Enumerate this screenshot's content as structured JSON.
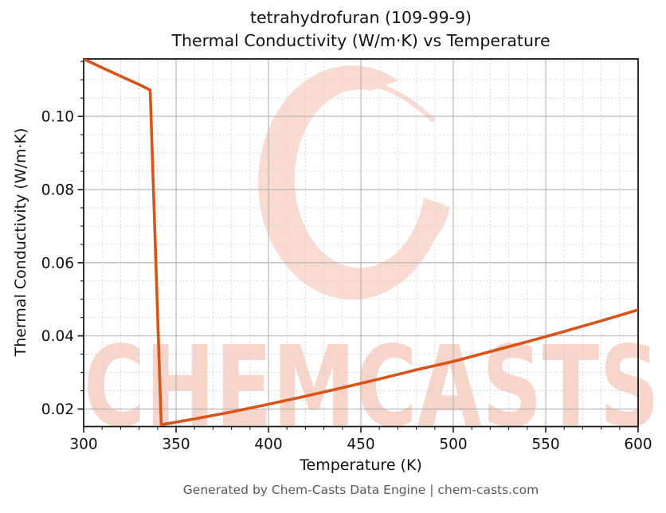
{
  "title": {
    "line1": "tetrahydrofuran (109-99-9)",
    "line2": "Thermal Conductivity (W/m·K) vs Temperature"
  },
  "footer": {
    "text": "Generated by Chem-Casts Data Engine | chem-casts.com"
  },
  "watermark": {
    "text": "CHEMCASTS",
    "logo": "chemcasts-brush-c-swirl"
  },
  "colors": {
    "line": "#d95319",
    "grid_major": "#b2b2b2",
    "grid_minor": "#d2d2d2",
    "spine": "#1a1a1a",
    "tick_text": "#111111",
    "title_text": "#111111",
    "footer_text": "#595959",
    "watermark_pink": "#f8d5ca",
    "watermark_logo_pink": "#fadbd2",
    "background": "#ffffff"
  },
  "chart_data": {
    "type": "line",
    "title": "tetrahydrofuran (109-99-9) — Thermal Conductivity (W/m·K) vs Temperature",
    "xlabel": "Temperature (K)",
    "ylabel": "Thermal Conductivity (W/m·K)",
    "xlim": [
      300,
      600
    ],
    "ylim": [
      0.0152,
      0.1157
    ],
    "x_ticks": [
      300,
      350,
      400,
      450,
      500,
      550,
      600
    ],
    "x_tick_labels": [
      "300",
      "350",
      "400",
      "450",
      "500",
      "550",
      "600"
    ],
    "y_ticks": [
      0.02,
      0.04,
      0.06,
      0.08,
      0.1
    ],
    "y_tick_labels": [
      "0.02",
      "0.04",
      "0.06",
      "0.08",
      "0.10"
    ],
    "x_minor_step": 10,
    "y_minor_step": 0.005,
    "grid": "major-solid-and-minor-dashed",
    "legend": "none",
    "series": [
      {
        "name": "thermal conductivity",
        "color": "#d95319",
        "points": [
          [
            300,
            0.1157
          ],
          [
            310,
            0.1133
          ],
          [
            320,
            0.111
          ],
          [
            330,
            0.1087
          ],
          [
            336,
            0.1072
          ],
          [
            342,
            0.0157
          ],
          [
            360,
            0.0173
          ],
          [
            380,
            0.0192
          ],
          [
            400,
            0.0213
          ],
          [
            420,
            0.0235
          ],
          [
            440,
            0.0258
          ],
          [
            460,
            0.0282
          ],
          [
            480,
            0.0307
          ],
          [
            500,
            0.033
          ],
          [
            520,
            0.0357
          ],
          [
            540,
            0.0384
          ],
          [
            560,
            0.0412
          ],
          [
            580,
            0.0441
          ],
          [
            600,
            0.0471
          ]
        ]
      }
    ]
  }
}
